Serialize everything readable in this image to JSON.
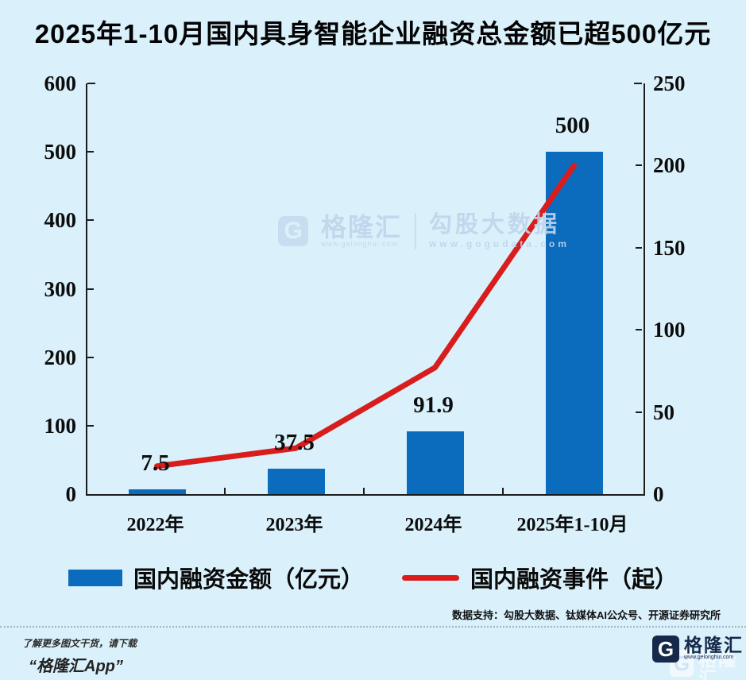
{
  "title": "2025年1-10月国内具身智能企业融资总金额已超500亿元",
  "chart_data": {
    "type": "combo",
    "categories": [
      "2022年",
      "2023年",
      "2024年",
      "2025年1-10月"
    ],
    "series": [
      {
        "name": "国内融资金额（亿元）",
        "type": "bar",
        "axis": "left",
        "color": "#0b6cbd",
        "values": [
          7.5,
          37.5,
          91.9,
          500
        ],
        "labels": [
          "7.5",
          "37.5",
          "91.9",
          "500"
        ]
      },
      {
        "name": "国内融资事件（起）",
        "type": "line",
        "axis": "right",
        "color": "#d91c1c",
        "values": [
          17,
          28,
          77,
          200
        ]
      }
    ],
    "left_axis": {
      "min": 0,
      "max": 600,
      "ticks": [
        0,
        100,
        200,
        300,
        400,
        500,
        600
      ]
    },
    "right_axis": {
      "min": 0,
      "max": 250,
      "ticks": [
        0,
        50,
        100,
        150,
        200,
        250
      ]
    },
    "grid": false,
    "legend_position": "bottom"
  },
  "watermark": {
    "g_letter": "G",
    "brand": "格隆汇",
    "brand_url": "www.gelonghui.com",
    "partner": "勾股大数据",
    "partner_url": "www.gogudata.com"
  },
  "notes": {
    "data_support": "数据支持：勾股大数据、钛媒体AI公众号、开源证券研究所"
  },
  "footer": {
    "promo_line1": "了解更多图文干货，请下载",
    "promo_line2": "“格隆汇App”",
    "g_letter": "G",
    "brand": "格隆汇",
    "brand_url": "www.gelonghui.com"
  },
  "colors": {
    "background": "#daf1fb",
    "bar": "#0b6cbd",
    "line": "#d91c1c",
    "axis": "#1c1c1c",
    "watermark_text": "#bfd5ec",
    "logo_navy": "#16294a"
  }
}
